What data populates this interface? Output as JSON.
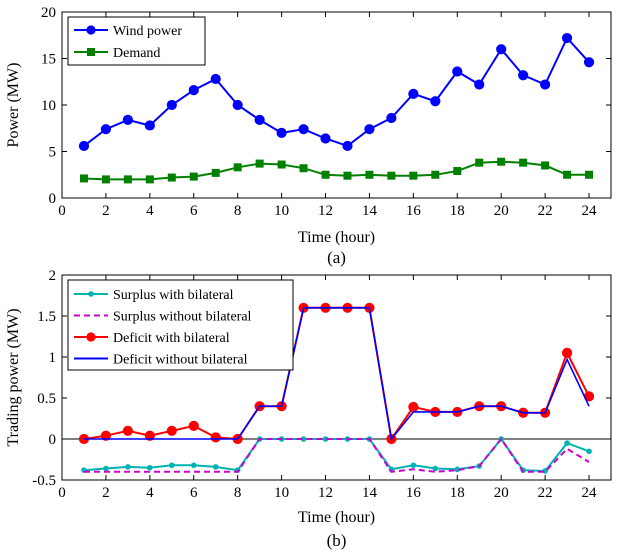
{
  "chart_data": [
    {
      "type": "line",
      "caption": "(a)",
      "xlabel": "Time (hour)",
      "ylabel": "Power (MW)",
      "xlim": [
        0,
        25
      ],
      "ylim": [
        0,
        20
      ],
      "xticks": [
        0,
        2,
        4,
        6,
        8,
        10,
        12,
        14,
        16,
        18,
        20,
        22,
        24
      ],
      "yticks": [
        0,
        5,
        10,
        15,
        20
      ],
      "grid": false,
      "legend_position": "top-left",
      "x": [
        1,
        2,
        3,
        4,
        5,
        6,
        7,
        8,
        9,
        10,
        11,
        12,
        13,
        14,
        15,
        16,
        17,
        18,
        19,
        20,
        21,
        22,
        23,
        24
      ],
      "series": [
        {
          "name": "Wind power",
          "color": "#0000ff",
          "marker": "circle",
          "dash": "solid",
          "values": [
            5.6,
            7.4,
            8.4,
            7.8,
            10.0,
            11.6,
            12.8,
            10.0,
            8.4,
            7.0,
            7.4,
            6.4,
            5.6,
            7.4,
            8.6,
            11.2,
            10.4,
            13.6,
            12.2,
            16.0,
            13.2,
            12.2,
            17.2,
            14.6
          ]
        },
        {
          "name": "Demand",
          "color": "#008000",
          "marker": "square",
          "dash": "solid",
          "values": [
            2.1,
            2.0,
            2.0,
            2.0,
            2.2,
            2.3,
            2.7,
            3.3,
            3.7,
            3.6,
            3.2,
            2.5,
            2.4,
            2.5,
            2.4,
            2.4,
            2.5,
            2.9,
            3.8,
            3.9,
            3.8,
            3.5,
            2.5,
            2.5
          ]
        }
      ]
    },
    {
      "type": "line",
      "caption": "(b)",
      "xlabel": "Time (hour)",
      "ylabel": "Trading power (MW)",
      "xlim": [
        0,
        25
      ],
      "ylim": [
        -0.5,
        2
      ],
      "xticks": [
        0,
        2,
        4,
        6,
        8,
        10,
        12,
        14,
        16,
        18,
        20,
        22,
        24
      ],
      "yticks": [
        -0.5,
        0,
        0.5,
        1,
        1.5,
        2
      ],
      "ytick_labels": [
        "-0.5",
        "0",
        "0.5",
        "1",
        "1.5",
        "2"
      ],
      "zero_line": true,
      "grid": false,
      "legend_position": "top-left",
      "x": [
        1,
        2,
        3,
        4,
        5,
        6,
        7,
        8,
        9,
        10,
        11,
        12,
        13,
        14,
        15,
        16,
        17,
        18,
        19,
        20,
        21,
        22,
        23,
        24
      ],
      "series": [
        {
          "name": "Surplus with bilateral",
          "color": "#00b3b3",
          "marker": "dot",
          "dash": "solid",
          "values": [
            -0.38,
            -0.36,
            -0.34,
            -0.35,
            -0.32,
            -0.32,
            -0.34,
            -0.38,
            0,
            0,
            0,
            0,
            0,
            0,
            -0.37,
            -0.32,
            -0.36,
            -0.37,
            -0.33,
            0,
            -0.38,
            -0.39,
            -0.05,
            -0.15
          ]
        },
        {
          "name": "Surplus without bilateral",
          "color": "#cc00cc",
          "marker": "none",
          "dash": "dashed",
          "values": [
            -0.4,
            -0.4,
            -0.4,
            -0.4,
            -0.4,
            -0.4,
            -0.4,
            -0.4,
            0,
            0,
            0,
            0,
            0,
            0,
            -0.4,
            -0.37,
            -0.4,
            -0.38,
            -0.33,
            0,
            -0.4,
            -0.4,
            -0.12,
            -0.28
          ]
        },
        {
          "name": "Deficit with bilateral",
          "color": "#ff0000",
          "marker": "circle",
          "dash": "solid",
          "values": [
            0,
            0.04,
            0.1,
            0.04,
            0.1,
            0.16,
            0.02,
            0,
            0.4,
            0.4,
            1.6,
            1.6,
            1.6,
            1.6,
            0,
            0.39,
            0.33,
            0.33,
            0.4,
            0.4,
            0.32,
            0.32,
            1.05,
            0.52
          ]
        },
        {
          "name": "Deficit without bilateral",
          "color": "#0000ff",
          "marker": "none",
          "dash": "solid",
          "values": [
            0,
            0,
            0,
            0,
            0,
            0,
            0,
            0,
            0.4,
            0.4,
            1.6,
            1.6,
            1.6,
            1.6,
            0,
            0.33,
            0.33,
            0.33,
            0.4,
            0.4,
            0.32,
            0.32,
            0.97,
            0.4
          ]
        }
      ]
    }
  ]
}
